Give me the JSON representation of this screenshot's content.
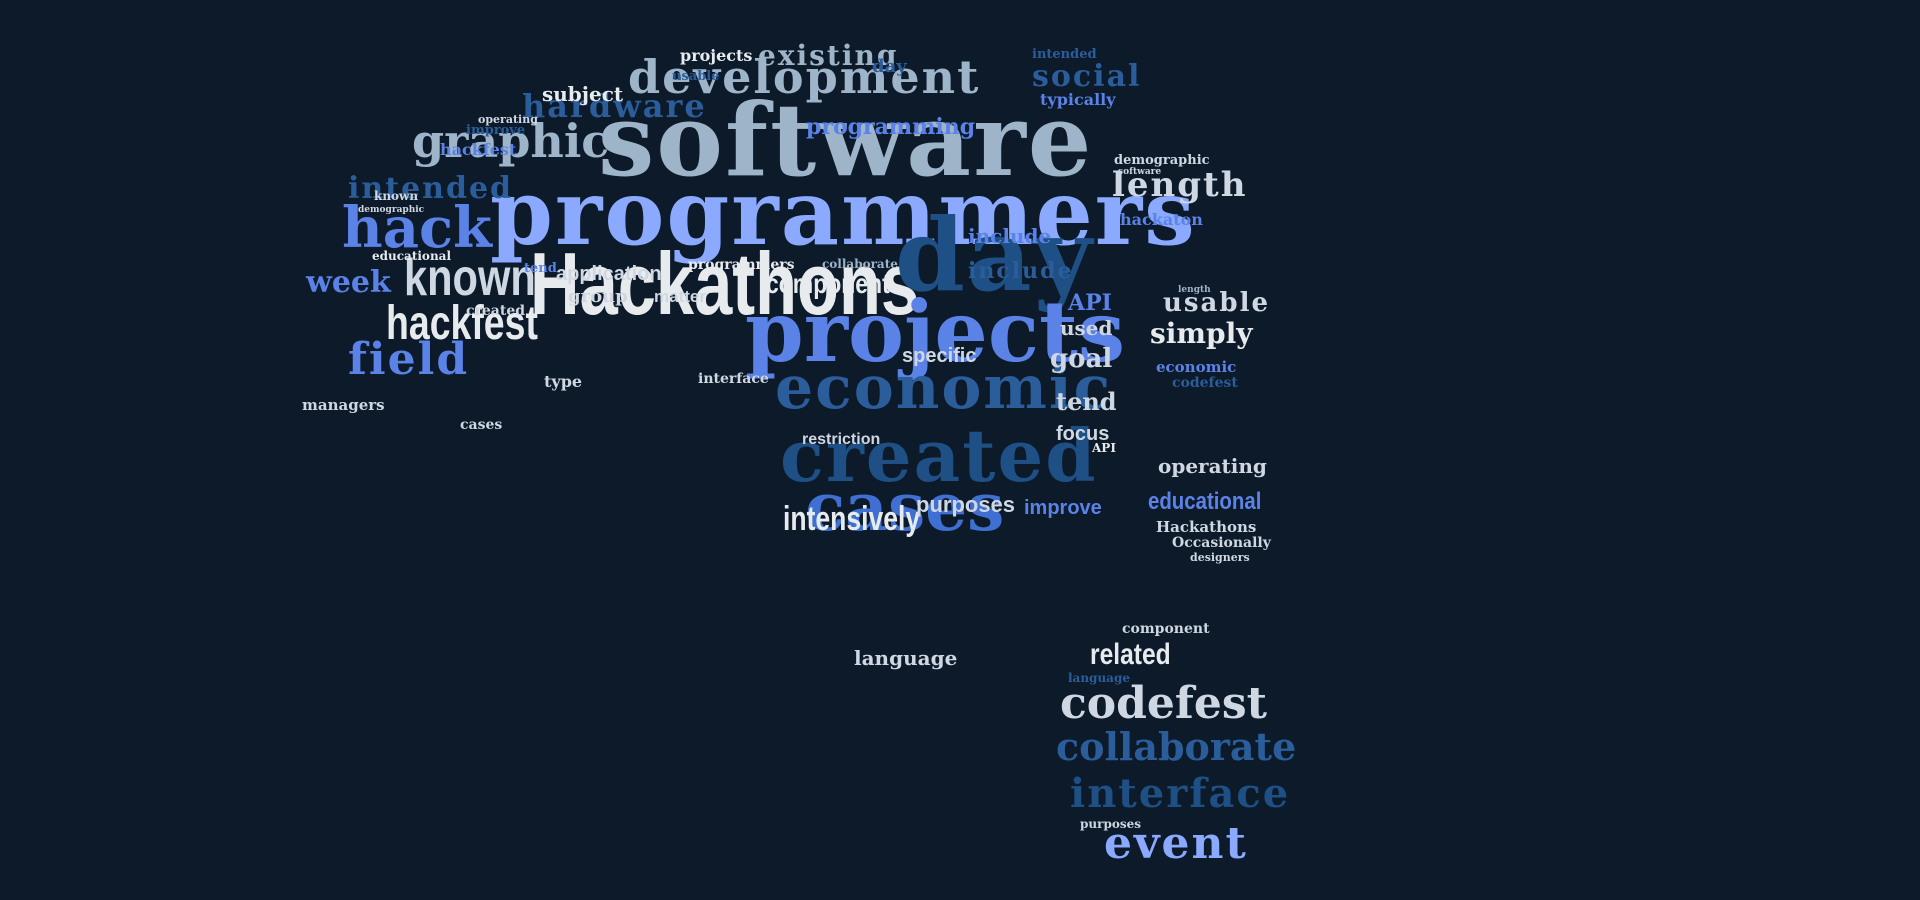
{
  "colors": {
    "background": "#0c1a2a",
    "white": "#e8ebee",
    "light": "#cfd8e2",
    "steel": "#9eb4c9",
    "periwinkle": "#8aa9ff",
    "blue": "#5b82e6",
    "mid": "#3f6fd0",
    "deep": "#2a5d9a",
    "navy": "#1e4f85"
  },
  "words": [
    "software",
    "programmers",
    "Hackathons",
    "day",
    "projects",
    "economic",
    "created",
    "cases",
    "development",
    "hardware",
    "graphic",
    "hack",
    "known",
    "hackfest",
    "field",
    "week",
    "intended",
    "existing",
    "subject",
    "programming",
    "social",
    "typically",
    "length",
    "hackaton",
    "usable",
    "simply",
    "codefest",
    "collaborate",
    "interface",
    "event",
    "related",
    "operating",
    "educational",
    "Occasionally",
    "designers",
    "component",
    "include",
    "API",
    "used",
    "goal",
    "tend",
    "focus",
    "intensively",
    "purposes",
    "improve",
    "language",
    "application",
    "group",
    "matter",
    "specific",
    "restriction",
    "managers",
    "type",
    "demographic",
    "cases",
    "intended",
    "day",
    "projects",
    "usable",
    "improve",
    "hackfest",
    "educational",
    "operating",
    "known",
    "programmers",
    "created",
    "Hackathons",
    "language",
    "collaborate",
    "tend",
    "API",
    "component",
    "include",
    "economic",
    "codefest",
    "demographic",
    "software",
    "length",
    "purposes",
    "interface"
  ]
}
